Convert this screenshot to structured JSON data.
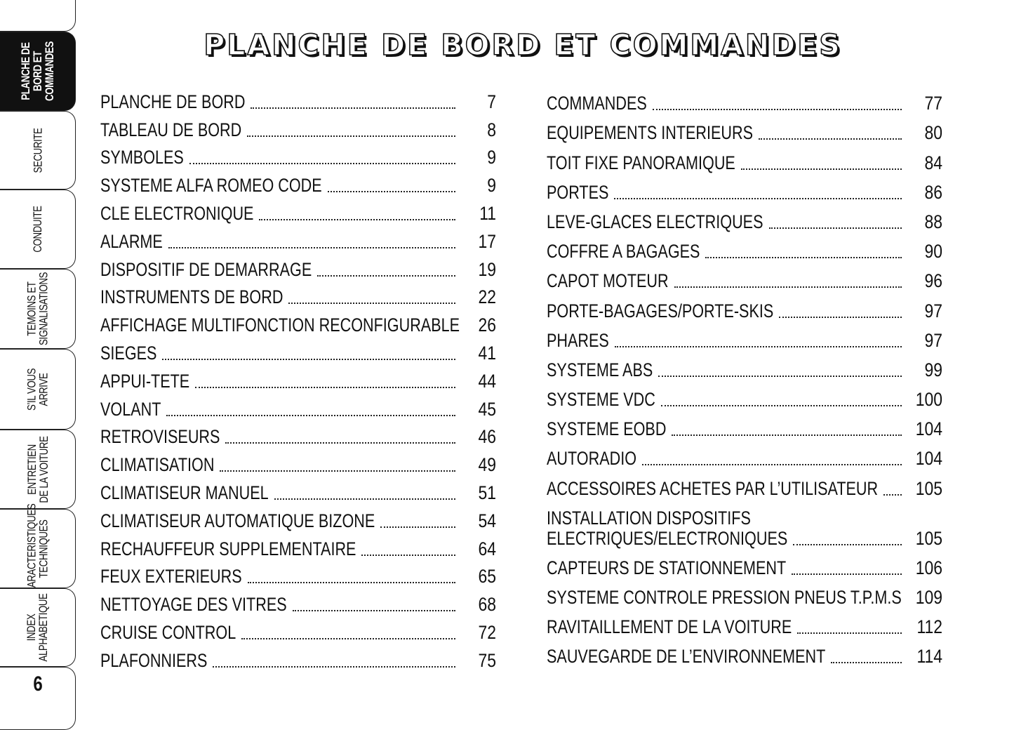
{
  "sidebar": {
    "tabs": [
      {
        "label": "PLANCHE DE\nBORD ET\nCOMMANDES",
        "active": true
      },
      {
        "label": "SECURITE"
      },
      {
        "label": "CONDUITE"
      },
      {
        "label": "TEMOINS ET\nSIGNALISATIONS"
      },
      {
        "label": "S’IL VOUS\nARRIVE"
      },
      {
        "label": "ENTRETIEN\nDE LA VOITURE"
      },
      {
        "label": "CARACTERISTIQUES\nTECHNIQUES"
      },
      {
        "label": "INDEX\nALPHABETIQUE"
      }
    ],
    "page_number": "6"
  },
  "title": "PLANCHE DE BORD ET COMMANDES",
  "toc_left": [
    {
      "label": "PLANCHE DE BORD",
      "page": "7"
    },
    {
      "label": "TABLEAU DE BORD",
      "page": "8"
    },
    {
      "label": "SYMBOLES",
      "page": "9"
    },
    {
      "label": "SYSTEME ALFA ROMEO CODE",
      "page": "9"
    },
    {
      "label": "CLE ELECTRONIQUE",
      "page": "11"
    },
    {
      "label": "ALARME",
      "page": "17"
    },
    {
      "label": "DISPOSITIF DE DEMARRAGE",
      "page": "19"
    },
    {
      "label": "INSTRUMENTS DE BORD",
      "page": "22"
    },
    {
      "label": "AFFICHAGE MULTIFONCTION RECONFIGURABLE",
      "page": "26"
    },
    {
      "label": "SIEGES",
      "page": "41"
    },
    {
      "label": "APPUI-TETE",
      "page": "44"
    },
    {
      "label": "VOLANT",
      "page": "45"
    },
    {
      "label": "RETROVISEURS",
      "page": "46"
    },
    {
      "label": "CLIMATISATION",
      "page": "49"
    },
    {
      "label": "CLIMATISEUR MANUEL",
      "page": "51"
    },
    {
      "label": "CLIMATISEUR AUTOMATIQUE BIZONE",
      "page": "54"
    },
    {
      "label": "RECHAUFFEUR SUPPLEMENTAIRE",
      "page": "64"
    },
    {
      "label": "FEUX EXTERIEURS",
      "page": "65"
    },
    {
      "label": "NETTOYAGE DES VITRES",
      "page": "68"
    },
    {
      "label": "CRUISE CONTROL",
      "page": "72"
    },
    {
      "label": "PLAFONNIERS",
      "page": "75"
    }
  ],
  "toc_right": [
    {
      "label": "COMMANDES",
      "page": "77"
    },
    {
      "label": "EQUIPEMENTS INTERIEURS",
      "page": "80"
    },
    {
      "label": "TOIT FIXE PANORAMIQUE",
      "page": "84"
    },
    {
      "label": "PORTES",
      "page": "86"
    },
    {
      "label": "LEVE-GLACES ELECTRIQUES",
      "page": "88"
    },
    {
      "label": "COFFRE A BAGAGES",
      "page": "90"
    },
    {
      "label": "CAPOT MOTEUR",
      "page": "96"
    },
    {
      "label": "PORTE-BAGAGES/PORTE-SKIS",
      "page": "97"
    },
    {
      "label": "PHARES",
      "page": "97"
    },
    {
      "label": "SYSTEME ABS",
      "page": "99"
    },
    {
      "label": "SYSTEME VDC",
      "page": "100"
    },
    {
      "label": "SYSTEME EOBD",
      "page": "104"
    },
    {
      "label": "AUTORADIO",
      "page": "104"
    },
    {
      "label": "ACCESSOIRES ACHETES PAR L’UTILISATEUR",
      "page": "105"
    },
    {
      "label": "INSTALLATION DISPOSITIFS",
      "label2": "ELECTRIQUES/ELECTRONIQUES",
      "page": "105"
    },
    {
      "label": "CAPTEURS DE STATIONNEMENT",
      "page": "106"
    },
    {
      "label": "SYSTEME CONTROLE PRESSION PNEUS T.P.M.S",
      "page": "109"
    },
    {
      "label": "RAVITAILLEMENT DE LA VOITURE",
      "page": "112"
    },
    {
      "label": "SAUVEGARDE DE L’ENVIRONNEMENT",
      "page": "114"
    }
  ]
}
